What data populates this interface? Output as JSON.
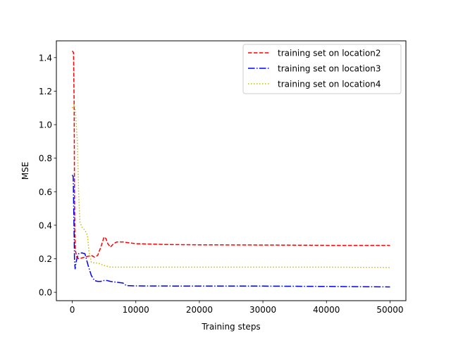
{
  "chart_data": {
    "type": "line",
    "title": "",
    "xlabel": "Training steps",
    "ylabel": "MSE",
    "xlim": [
      -2500,
      52500
    ],
    "ylim": [
      -0.05,
      1.5
    ],
    "xticks": [
      0,
      10000,
      20000,
      30000,
      40000,
      50000
    ],
    "xtick_labels": [
      "0",
      "10000",
      "20000",
      "30000",
      "40000",
      "50000"
    ],
    "yticks": [
      0.0,
      0.2,
      0.4,
      0.6,
      0.8,
      1.0,
      1.2,
      1.4
    ],
    "ytick_labels": [
      "0.0",
      "0.2",
      "0.4",
      "0.6",
      "0.8",
      "1.0",
      "1.2",
      "1.4"
    ],
    "grid": false,
    "legend_position": "top-right",
    "series": [
      {
        "name": "training set on location2",
        "color": "#ff0000",
        "dash": "dashed",
        "points": [
          [
            0,
            1.44
          ],
          [
            200,
            1.43
          ],
          [
            300,
            1.1
          ],
          [
            350,
            0.6
          ],
          [
            400,
            0.35
          ],
          [
            500,
            0.25
          ],
          [
            700,
            0.21
          ],
          [
            1000,
            0.2
          ],
          [
            2000,
            0.21
          ],
          [
            3000,
            0.22
          ],
          [
            3500,
            0.21
          ],
          [
            4000,
            0.22
          ],
          [
            4500,
            0.27
          ],
          [
            5000,
            0.33
          ],
          [
            5300,
            0.32
          ],
          [
            5600,
            0.29
          ],
          [
            6000,
            0.27
          ],
          [
            6500,
            0.29
          ],
          [
            7000,
            0.3
          ],
          [
            8000,
            0.3
          ],
          [
            10000,
            0.29
          ],
          [
            15000,
            0.285
          ],
          [
            20000,
            0.283
          ],
          [
            30000,
            0.282
          ],
          [
            40000,
            0.28
          ],
          [
            50000,
            0.28
          ]
        ]
      },
      {
        "name": "training set on location3",
        "color": "#0000ff",
        "dash": "dashdot",
        "points": [
          [
            0,
            0.7
          ],
          [
            150,
            0.69
          ],
          [
            250,
            0.45
          ],
          [
            350,
            0.2
          ],
          [
            450,
            0.14
          ],
          [
            600,
            0.18
          ],
          [
            800,
            0.21
          ],
          [
            1000,
            0.23
          ],
          [
            1500,
            0.235
          ],
          [
            2000,
            0.23
          ],
          [
            2500,
            0.16
          ],
          [
            3000,
            0.1
          ],
          [
            3500,
            0.07
          ],
          [
            4000,
            0.065
          ],
          [
            4500,
            0.065
          ],
          [
            5000,
            0.07
          ],
          [
            5500,
            0.07
          ],
          [
            6000,
            0.065
          ],
          [
            7000,
            0.06
          ],
          [
            8000,
            0.055
          ],
          [
            8500,
            0.04
          ],
          [
            10000,
            0.038
          ],
          [
            20000,
            0.037
          ],
          [
            30000,
            0.037
          ],
          [
            40000,
            0.035
          ],
          [
            50000,
            0.032
          ]
        ]
      },
      {
        "name": "training set on location4",
        "color": "#ccbb00",
        "dash": "dotted",
        "points": [
          [
            0,
            1.1
          ],
          [
            300,
            1.12
          ],
          [
            500,
            1.08
          ],
          [
            800,
            0.9
          ],
          [
            1000,
            0.6
          ],
          [
            1200,
            0.42
          ],
          [
            1500,
            0.39
          ],
          [
            2000,
            0.37
          ],
          [
            2400,
            0.34
          ],
          [
            2600,
            0.25
          ],
          [
            3000,
            0.18
          ],
          [
            3500,
            0.175
          ],
          [
            4000,
            0.175
          ],
          [
            5000,
            0.16
          ],
          [
            6000,
            0.15
          ],
          [
            10000,
            0.15
          ],
          [
            20000,
            0.15
          ],
          [
            30000,
            0.15
          ],
          [
            40000,
            0.15
          ],
          [
            50000,
            0.148
          ]
        ]
      }
    ]
  }
}
